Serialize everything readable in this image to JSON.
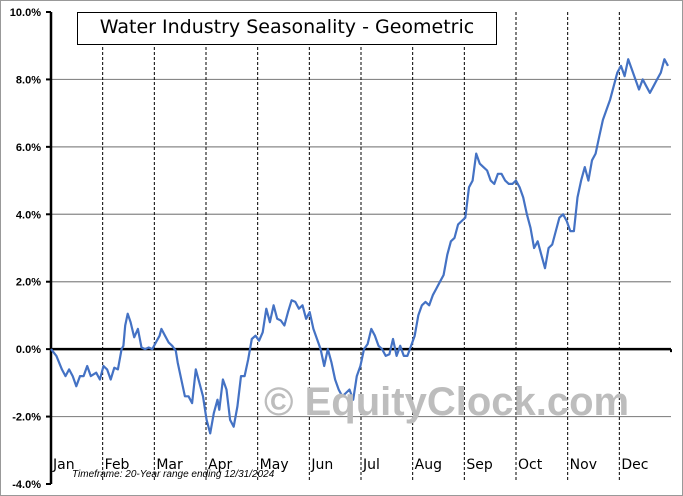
{
  "chart_data": {
    "type": "line",
    "title": "Water Industry Seasonality - Geometric",
    "xlabel": "",
    "ylabel": "",
    "categories": [
      "Jan",
      "Feb",
      "Mar",
      "Apr",
      "May",
      "Jun",
      "Jul",
      "Aug",
      "Sep",
      "Oct",
      "Nov",
      "Dec"
    ],
    "y_ticks": [
      "10.0%",
      "8.0%",
      "6.0%",
      "4.0%",
      "2.0%",
      "0.0%",
      "-2.0%",
      "-4.0%"
    ],
    "ylim": [
      -4.0,
      10.0
    ],
    "grid": {
      "horizontal": true,
      "vertical_month_dividers": "dashed"
    },
    "legend": "none",
    "annotations": [
      "Timeframe: 20-Year range ending 12/31/2024",
      "© EquityClock.com"
    ],
    "series": [
      {
        "name": "Water Industry Seasonality - Geometric",
        "color": "#4472C4",
        "points": [
          [
            0.0,
            0.0
          ],
          [
            0.15,
            -0.2
          ],
          [
            0.3,
            -0.6
          ],
          [
            0.4,
            -0.8
          ],
          [
            0.5,
            -0.6
          ],
          [
            0.6,
            -0.8
          ],
          [
            0.7,
            -1.1
          ],
          [
            0.8,
            -0.8
          ],
          [
            0.9,
            -0.8
          ],
          [
            1.0,
            -0.5
          ],
          [
            1.1,
            -0.8
          ],
          [
            1.25,
            -0.7
          ],
          [
            1.35,
            -0.9
          ],
          [
            1.45,
            -0.5
          ],
          [
            1.55,
            -0.6
          ],
          [
            1.65,
            -0.9
          ],
          [
            1.75,
            -0.55
          ],
          [
            1.85,
            -0.6
          ],
          [
            1.95,
            0.0
          ],
          [
            2.0,
            0.1
          ],
          [
            2.05,
            0.7
          ],
          [
            2.12,
            1.05
          ],
          [
            2.2,
            0.8
          ],
          [
            2.3,
            0.35
          ],
          [
            2.4,
            0.6
          ],
          [
            2.5,
            0.05
          ],
          [
            2.6,
            0.0
          ],
          [
            2.7,
            0.05
          ],
          [
            2.8,
            0.0
          ],
          [
            2.9,
            0.2
          ],
          [
            3.0,
            0.4
          ],
          [
            3.05,
            0.6
          ],
          [
            3.15,
            0.4
          ],
          [
            3.25,
            0.2
          ],
          [
            3.35,
            0.1
          ],
          [
            3.45,
            -0.05
          ],
          [
            3.5,
            -0.4
          ],
          [
            3.6,
            -0.9
          ],
          [
            3.7,
            -1.4
          ],
          [
            3.8,
            -1.4
          ],
          [
            3.9,
            -1.6
          ],
          [
            4.0,
            -0.6
          ],
          [
            4.1,
            -1.0
          ],
          [
            4.2,
            -1.4
          ],
          [
            4.3,
            -2.1
          ],
          [
            4.4,
            -2.5
          ],
          [
            4.5,
            -1.9
          ],
          [
            4.6,
            -1.5
          ],
          [
            4.65,
            -1.8
          ],
          [
            4.75,
            -0.9
          ],
          [
            4.85,
            -1.2
          ],
          [
            4.95,
            -2.1
          ],
          [
            5.05,
            -2.3
          ],
          [
            5.15,
            -1.7
          ],
          [
            5.25,
            -0.8
          ],
          [
            5.35,
            -0.8
          ],
          [
            5.45,
            -0.3
          ],
          [
            5.55,
            0.3
          ],
          [
            5.65,
            0.4
          ],
          [
            5.75,
            0.25
          ],
          [
            5.85,
            0.5
          ],
          [
            5.95,
            1.2
          ],
          [
            6.05,
            0.8
          ],
          [
            6.15,
            1.3
          ],
          [
            6.25,
            0.9
          ],
          [
            6.35,
            0.85
          ],
          [
            6.45,
            0.7
          ],
          [
            6.55,
            1.1
          ],
          [
            6.65,
            1.45
          ],
          [
            6.75,
            1.4
          ],
          [
            6.85,
            1.2
          ],
          [
            6.95,
            1.3
          ],
          [
            7.05,
            0.9
          ],
          [
            7.15,
            1.1
          ],
          [
            7.25,
            0.6
          ],
          [
            7.35,
            0.3
          ],
          [
            7.45,
            0.0
          ],
          [
            7.55,
            -0.5
          ],
          [
            7.65,
            0.0
          ],
          [
            7.75,
            -0.4
          ],
          [
            7.85,
            -0.9
          ],
          [
            7.95,
            -1.2
          ],
          [
            8.05,
            -1.4
          ],
          [
            8.15,
            -1.3
          ],
          [
            8.25,
            -1.2
          ],
          [
            8.35,
            -1.5
          ],
          [
            8.45,
            -0.8
          ],
          [
            8.55,
            -0.5
          ],
          [
            8.65,
            0.0
          ],
          [
            8.75,
            0.15
          ],
          [
            8.85,
            0.6
          ],
          [
            8.95,
            0.4
          ],
          [
            9.05,
            0.1
          ],
          [
            9.15,
            0.0
          ],
          [
            9.25,
            -0.2
          ],
          [
            9.35,
            -0.15
          ],
          [
            9.45,
            0.3
          ],
          [
            9.55,
            -0.2
          ],
          [
            9.65,
            0.1
          ],
          [
            9.75,
            -0.2
          ],
          [
            9.85,
            -0.2
          ],
          [
            9.95,
            0.1
          ],
          [
            10.05,
            0.4
          ],
          [
            10.15,
            1.0
          ],
          [
            10.25,
            1.3
          ],
          [
            10.35,
            1.4
          ],
          [
            10.45,
            1.3
          ],
          [
            10.55,
            1.6
          ],
          [
            10.65,
            1.8
          ],
          [
            10.75,
            2.0
          ],
          [
            10.85,
            2.2
          ],
          [
            10.95,
            2.8
          ],
          [
            11.05,
            3.2
          ],
          [
            11.15,
            3.3
          ],
          [
            11.25,
            3.7
          ],
          [
            11.35,
            3.8
          ],
          [
            11.45,
            3.9
          ],
          [
            11.55,
            4.8
          ],
          [
            11.65,
            5.0
          ],
          [
            11.75,
            5.8
          ],
          [
            11.85,
            5.5
          ],
          [
            11.95,
            5.4
          ],
          [
            12.05,
            5.3
          ],
          [
            12.15,
            5.0
          ],
          [
            12.25,
            4.9
          ],
          [
            12.35,
            5.2
          ],
          [
            12.45,
            5.2
          ],
          [
            12.55,
            5.0
          ],
          [
            12.65,
            4.9
          ],
          [
            12.75,
            4.9
          ],
          [
            12.85,
            5.0
          ],
          [
            12.95,
            4.8
          ],
          [
            13.05,
            4.5
          ],
          [
            13.15,
            4.0
          ],
          [
            13.25,
            3.6
          ],
          [
            13.35,
            3.0
          ],
          [
            13.45,
            3.2
          ],
          [
            13.55,
            2.8
          ],
          [
            13.65,
            2.4
          ],
          [
            13.75,
            3.0
          ],
          [
            13.85,
            3.1
          ],
          [
            13.95,
            3.5
          ],
          [
            14.05,
            3.9
          ],
          [
            14.15,
            4.0
          ],
          [
            14.25,
            3.8
          ],
          [
            14.35,
            3.5
          ],
          [
            14.45,
            3.5
          ],
          [
            14.55,
            4.5
          ],
          [
            14.65,
            5.0
          ],
          [
            14.75,
            5.4
          ],
          [
            14.85,
            5.0
          ],
          [
            14.95,
            5.6
          ],
          [
            15.05,
            5.8
          ],
          [
            15.15,
            6.3
          ],
          [
            15.25,
            6.8
          ],
          [
            15.35,
            7.1
          ],
          [
            15.45,
            7.4
          ],
          [
            15.55,
            7.8
          ],
          [
            15.65,
            8.2
          ],
          [
            15.75,
            8.4
          ],
          [
            15.85,
            8.1
          ],
          [
            15.95,
            8.6
          ],
          [
            16.05,
            8.3
          ],
          [
            16.15,
            8.0
          ],
          [
            16.25,
            7.7
          ],
          [
            16.35,
            8.0
          ],
          [
            16.45,
            7.8
          ],
          [
            16.55,
            7.6
          ],
          [
            16.65,
            7.8
          ],
          [
            16.75,
            8.0
          ],
          [
            16.85,
            8.2
          ],
          [
            16.95,
            8.6
          ],
          [
            17.05,
            8.4
          ]
        ]
      }
    ]
  },
  "title": "Water Industry Seasonality - Geometric",
  "timeframe": "Timeframe: 20-Year range ending 12/31/2024",
  "watermark": "© EquityClock.com",
  "axis": {
    "y_labels": [
      "10.0%",
      "8.0%",
      "6.0%",
      "4.0%",
      "2.0%",
      "0.0%",
      "-2.0%",
      "-4.0%"
    ],
    "months": [
      "Jan",
      "Feb",
      "Mar",
      "Apr",
      "May",
      "Jun",
      "Jul",
      "Aug",
      "Sep",
      "Oct",
      "Nov",
      "Dec"
    ]
  }
}
